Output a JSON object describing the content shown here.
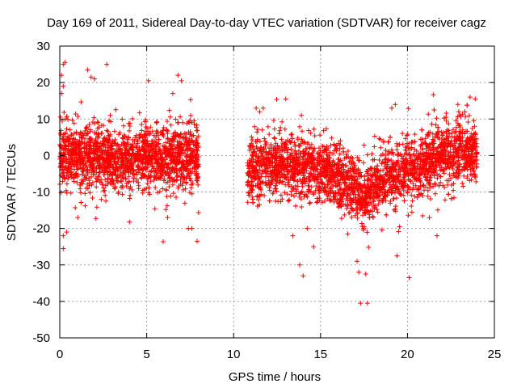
{
  "chart_data": {
    "type": "scatter",
    "title": "Day 169 of 2011, Sidereal Day-to-day VTEC variation (SDTVAR) for receiver cagz",
    "xlabel": "GPS time / hours",
    "ylabel": "SDTVAR / TECUs",
    "xlim": [
      0,
      25
    ],
    "ylim": [
      -50,
      30
    ],
    "xticks": [
      0,
      5,
      10,
      15,
      20,
      25
    ],
    "yticks": [
      -50,
      -40,
      -30,
      -20,
      -10,
      0,
      10,
      20,
      30
    ],
    "xtick_labels": [
      "0",
      "5",
      "10",
      "15",
      "20",
      "25"
    ],
    "ytick_labels": [
      "-50",
      "-40",
      "-30",
      "-20",
      "-10",
      "0",
      "10",
      "20",
      "30"
    ],
    "grid": true,
    "legend": "none",
    "marker": "+",
    "series": [
      {
        "name": "SDTVAR",
        "color": "#ff0000",
        "segments": [
          {
            "x_start": 0.0,
            "x_end": 8.0,
            "trend": [
              [
                0.0,
                0.0
              ],
              [
                2.0,
                -0.5
              ],
              [
                4.0,
                -1.0
              ],
              [
                6.0,
                -0.5
              ],
              [
                8.0,
                -1.0
              ]
            ],
            "spread": 4
          },
          {
            "x_start": 10.8,
            "x_end": 24.0,
            "trend": [
              [
                10.8,
                -5.0
              ],
              [
                12.0,
                -2.0
              ],
              [
                13.0,
                -2.0
              ],
              [
                14.0,
                -3.0
              ],
              [
                15.0,
                -4.0
              ],
              [
                16.0,
                -6.0
              ],
              [
                17.0,
                -9.0
              ],
              [
                17.5,
                -12.0
              ],
              [
                18.0,
                -9.0
              ],
              [
                19.0,
                -6.0
              ],
              [
                20.0,
                -4.0
              ],
              [
                21.0,
                -2.0
              ],
              [
                22.0,
                0.0
              ],
              [
                23.0,
                1.0
              ],
              [
                24.0,
                0.0
              ]
            ],
            "spread": 4
          }
        ],
        "notable_points": [
          [
            0.2,
            25.0
          ],
          [
            0.3,
            25.5
          ],
          [
            0.1,
            22.0
          ],
          [
            0.2,
            19.0
          ],
          [
            0.1,
            17.0
          ],
          [
            2.7,
            25.0
          ],
          [
            1.6,
            23.5
          ],
          [
            2.0,
            21.0
          ],
          [
            1.8,
            21.5
          ],
          [
            5.1,
            20.5
          ],
          [
            6.8,
            22.0
          ],
          [
            7.0,
            20.5
          ],
          [
            6.5,
            17.0
          ],
          [
            0.2,
            -25.5
          ],
          [
            0.2,
            -22.0
          ],
          [
            0.4,
            -21.0
          ],
          [
            7.9,
            -23.5
          ],
          [
            7.4,
            -20.0
          ],
          [
            7.6,
            -20.0
          ],
          [
            6.2,
            -17.0
          ],
          [
            11.3,
            13.0
          ],
          [
            11.7,
            13.0
          ],
          [
            11.5,
            12.0
          ],
          [
            13.0,
            15.5
          ],
          [
            13.9,
            11.0
          ],
          [
            14.0,
            -33.0
          ],
          [
            13.8,
            -30.0
          ],
          [
            14.6,
            -25.0
          ],
          [
            13.4,
            -22.0
          ],
          [
            17.3,
            -40.5
          ],
          [
            17.7,
            -40.5
          ],
          [
            17.2,
            -32.0
          ],
          [
            17.6,
            -32.5
          ],
          [
            17.1,
            -29.0
          ],
          [
            20.1,
            -33.5
          ],
          [
            19.4,
            -27.5
          ],
          [
            21.7,
            -22.0
          ],
          [
            19.1,
            13.0
          ],
          [
            19.3,
            14.0
          ],
          [
            22.9,
            14.0
          ],
          [
            23.6,
            16.0
          ],
          [
            23.9,
            15.5
          ],
          [
            23.3,
            12.0
          ]
        ]
      }
    ]
  }
}
